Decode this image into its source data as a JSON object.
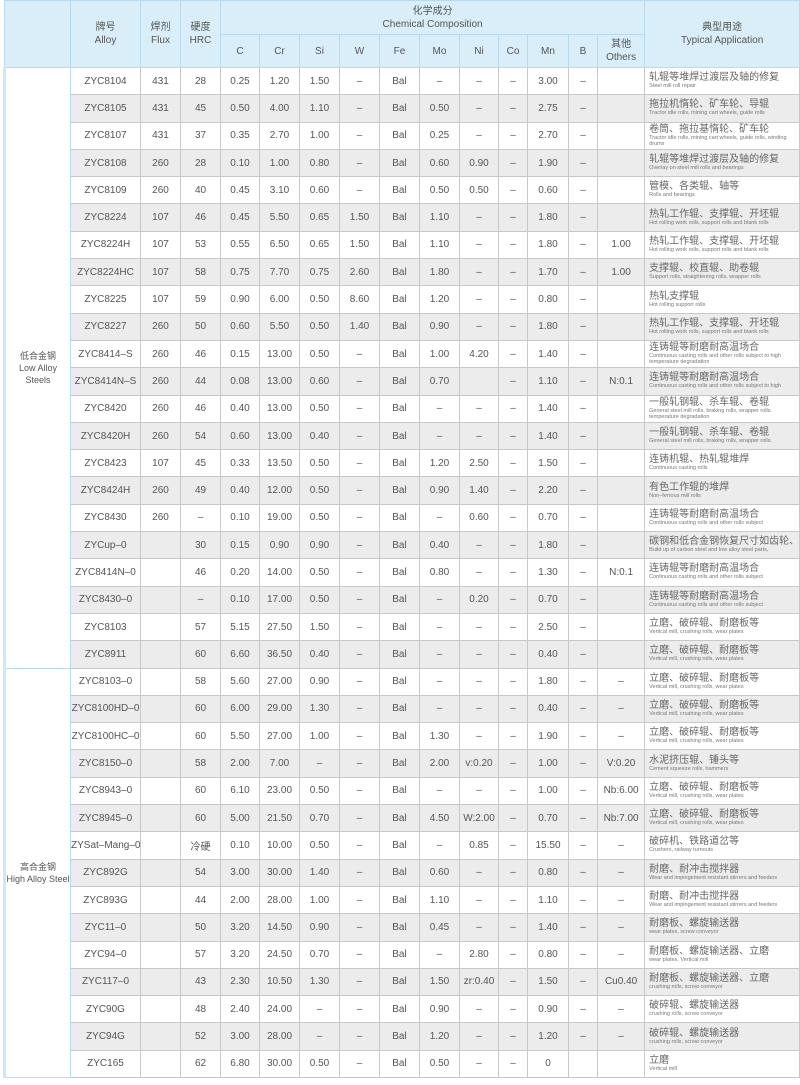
{
  "header": {
    "alloy_cn": "牌号",
    "alloy_en": "Alloy",
    "flux_cn": "焊剂",
    "flux_en": "Flux",
    "hrc_cn": "硬度",
    "hrc_en": "HRC",
    "chem_cn": "化学成分",
    "chem_en": "Chemical Composition",
    "elements": [
      "C",
      "Cr",
      "Si",
      "W",
      "Fe",
      "Mo",
      "Ni",
      "Co",
      "Mn",
      "B"
    ],
    "others_cn": "其他",
    "others_en": "Others",
    "app_cn": "典型用途",
    "app_en": "Typical Application"
  },
  "colors": {
    "header_bg": "#d9eef9",
    "row_alt": "#ececec"
  },
  "groups": [
    {
      "label_cn": "低合金钢",
      "label_en": "Low Alloy Steels",
      "rows": [
        [
          "ZYC8104",
          "431",
          "28",
          "0.25",
          "1.20",
          "1.50",
          "–",
          "Bal",
          "–",
          "–",
          "–",
          "3.00",
          "–",
          "",
          "轧辊等堆焊过渡层及轴的修复",
          "Steel mill roll repair"
        ],
        [
          "ZYC8105",
          "431",
          "45",
          "0.50",
          "4.00",
          "1.10",
          "–",
          "Bal",
          "0.50",
          "–",
          "–",
          "2.75",
          "–",
          "",
          "拖拉机惰轮、矿车轮、导辊",
          "Tractor idle rolls, mining cart wheels, guide rolls"
        ],
        [
          "ZYC8107",
          "431",
          "37",
          "0.35",
          "2.70",
          "1.00",
          "–",
          "Bal",
          "0.25",
          "–",
          "–",
          "2.70",
          "–",
          "",
          "卷筒、拖拉基惰轮、矿车轮",
          "Tractor idle rolls, mining cart wheels, guide rolls, winding drums"
        ],
        [
          "ZYC8108",
          "260",
          "28",
          "0.10",
          "1.00",
          "0.80",
          "–",
          "Bal",
          "0.60",
          "0.90",
          "–",
          "1.90",
          "–",
          "",
          "轧辊等堆焊过渡层及轴的修复",
          "Overlay on steel mill rolls and bearings"
        ],
        [
          "ZYC8109",
          "260",
          "40",
          "0.45",
          "3.10",
          "0.60",
          "–",
          "Bal",
          "0.50",
          "0.50",
          "–",
          "0.60",
          "–",
          "",
          "管模、各类辊、轴等",
          "Rolls and bearings"
        ],
        [
          "ZYC8224",
          "107",
          "46",
          "0.45",
          "5.50",
          "0.65",
          "1.50",
          "Bal",
          "1.10",
          "–",
          "–",
          "1.80",
          "–",
          "",
          "热轧工作辊、支撑辊、开坯辊",
          "Hot rolling work rolls, support rolls and blank rolls"
        ],
        [
          "ZYC8224H",
          "107",
          "53",
          "0.55",
          "6.50",
          "0.65",
          "1.50",
          "Bal",
          "1.10",
          "–",
          "–",
          "1.80",
          "–",
          "1.00",
          "热轧工作辊、支撑辊、开坯辊",
          "Hot rolling work rolls, support rolls and blank rolls"
        ],
        [
          "ZYC8224HC",
          "107",
          "58",
          "0.75",
          "7.70",
          "0.75",
          "2.60",
          "Bal",
          "1.80",
          "–",
          "–",
          "1.70",
          "–",
          "1.00",
          "支撑辊、校直辊、助卷辊",
          "Support rolls, straightening rolls, wrapper rolls"
        ],
        [
          "ZYC8225",
          "107",
          "59",
          "0.90",
          "6.00",
          "0.50",
          "8.60",
          "Bal",
          "1.20",
          "–",
          "–",
          "0.80",
          "–",
          "",
          "热轧支撑辊",
          "Hot rolling support rolls"
        ],
        [
          "ZYC8227",
          "260",
          "50",
          "0.60",
          "5.50",
          "0.50",
          "1.40",
          "Bal",
          "0.90",
          "–",
          "–",
          "1.80",
          "–",
          "",
          "热轧工作辊、支撑辊、开坯辊",
          "Hot rolling work rolls, support rolls and blank rolls"
        ],
        [
          "ZYC8414–S",
          "260",
          "46",
          "0.15",
          "13.00",
          "0.50",
          "–",
          "Bal",
          "1.00",
          "4.20",
          "–",
          "1.40",
          "–",
          "",
          "连铸辊等耐磨耐高温场合",
          "Continuous casting rolls and other rolls subject to high temperature degradation"
        ],
        [
          "ZYC8414N–S",
          "260",
          "44",
          "0.08",
          "13.00",
          "0.60",
          "–",
          "Bal",
          "0.70",
          "",
          "–",
          "1.10",
          "–",
          "N:0.1",
          "连铸辊等耐磨耐高温场合",
          "Continuous casting rolls and other rolls subject to high"
        ],
        [
          "ZYC8420",
          "260",
          "46",
          "0.40",
          "13.00",
          "0.50",
          "–",
          "Bal",
          "–",
          "–",
          "–",
          "1.40",
          "–",
          "",
          "一般轧钢辊、杀车辊、卷辊",
          "General steel mill rolls, braking rolls, wrapper rolls. temperature degradation"
        ],
        [
          "ZYC8420H",
          "260",
          "54",
          "0.60",
          "13.00",
          "0.40",
          "–",
          "Bal",
          "–",
          "–",
          "–",
          "1.40",
          "–",
          "",
          "一般轧钢辊、杀车辊、卷辊",
          "General steel mill rolls, braking rolls, wrapper rolls."
        ],
        [
          "ZYC8423",
          "107",
          "45",
          "0.33",
          "13.50",
          "0.50",
          "–",
          "Bal",
          "1.20",
          "2.50",
          "–",
          "1.50",
          "–",
          "",
          "连铸机辊、热轧辊堆焊",
          "Continuous casting rolls"
        ],
        [
          "ZYC8424H",
          "260",
          "49",
          "0.40",
          "12.00",
          "0.50",
          "–",
          "Bal",
          "0.90",
          "1.40",
          "–",
          "2.20",
          "–",
          "",
          "有色工作辊的堆焊",
          "Non–ferrous mill rolls"
        ],
        [
          "ZYC8430",
          "260",
          "–",
          "0.10",
          "19.00",
          "0.50",
          "–",
          "Bal",
          "–",
          "0.60",
          "–",
          "0.70",
          "–",
          "",
          "连铸辊等耐磨耐高温场合",
          "Continuous casting rolls and other rolls subject"
        ],
        [
          "ZYCup–0",
          "",
          "30",
          "0.15",
          "0.90",
          "0.90",
          "–",
          "Bal",
          "0.40",
          "–",
          "–",
          "1.80",
          "–",
          "",
          "碳钢和低合金钢恢复尺寸如齿轮、",
          "Build up of carbon steel and low alloy steel parts,"
        ],
        [
          "ZYC8414N–0",
          "",
          "46",
          "0.20",
          "14.00",
          "0.50",
          "–",
          "Bal",
          "0.80",
          "–",
          "–",
          "1.30",
          "–",
          "N:0.1",
          "连铸辊等耐磨耐高温场合",
          "Continuous casting rolls and other rolls subject"
        ],
        [
          "ZYC8430–0",
          "",
          "–",
          "0.10",
          "17.00",
          "0.50",
          "–",
          "Bal",
          "–",
          "0.20",
          "–",
          "0.70",
          "–",
          "",
          "连铸辊等耐磨耐高温场合",
          "Continuous casting rolls and other rolls subject"
        ],
        [
          "ZYC8103",
          "",
          "57",
          "5.15",
          "27.50",
          "1.50",
          "–",
          "Bal",
          "–",
          "–",
          "–",
          "2.50",
          "–",
          "",
          "立磨、破碎辊、耐磨板等",
          "Vertical mill, crushing rolls, wear plates"
        ],
        [
          "ZYC8911",
          "",
          "60",
          "6.60",
          "36.50",
          "0.40",
          "–",
          "Bal",
          "–",
          "–",
          "–",
          "0.40",
          "–",
          "",
          "立磨、破碎辊、耐磨板等",
          "Vertical mill, crushing rolls, wear plates"
        ]
      ]
    },
    {
      "label_cn": "高合金钢",
      "label_en": "High Alloy Steel",
      "rows": [
        [
          "ZYC8103–0",
          "",
          "58",
          "5.60",
          "27.00",
          "0.90",
          "–",
          "Bal",
          "–",
          "–",
          "–",
          "1.80",
          "–",
          "–",
          "立磨、破碎辊、耐磨板等",
          "Vertical mill, crushing rolls, wear plates"
        ],
        [
          "ZYC8100HD–0",
          "",
          "60",
          "6.00",
          "29.00",
          "1.30",
          "–",
          "Bal",
          "–",
          "–",
          "–",
          "0.40",
          "–",
          "–",
          "立磨、破碎辊、耐磨板等",
          "Vertical mill, crushing rolls, wear plates"
        ],
        [
          "ZYC8100HC–0",
          "",
          "60",
          "5.50",
          "27.00",
          "1.00",
          "–",
          "Bal",
          "1.30",
          "–",
          "–",
          "1.90",
          "–",
          "–",
          "立磨、破碎辊、耐磨板等",
          "Vertical mill, crushing rolls, wear plates"
        ],
        [
          "ZYC8150–0",
          "",
          "58",
          "2.00",
          "7.00",
          "–",
          "–",
          "Bal",
          "2.00",
          "v:0.20",
          "–",
          "1.00",
          "–",
          "V:0.20",
          "水泥挤压辊、锤头等",
          "Cement squeeze rolls, hammers"
        ],
        [
          "ZYC8943–0",
          "",
          "60",
          "6.10",
          "23.00",
          "0.50",
          "–",
          "Bal",
          "–",
          "–",
          "–",
          "1.00",
          "–",
          "Nb:6.00",
          "立磨、破碎辊、耐磨板等",
          "Vertical mill, crushing rolls, wear plates"
        ],
        [
          "ZYC8945–0",
          "",
          "60",
          "5.00",
          "21.50",
          "0.70",
          "–",
          "Bal",
          "4.50",
          "W:2.00",
          "–",
          "0.70",
          "–",
          "Nb:7.00",
          "立磨、破碎辊、耐磨板等",
          "Vertical mill, crushing rolls, wear plates"
        ],
        [
          "ZYSat–Mang–0",
          "",
          "冷硬",
          "0.10",
          "10.00",
          "0.50",
          "–",
          "Bal",
          "–",
          "0.85",
          "–",
          "15.50",
          "–",
          "–",
          "破碎机、铁路道岔等",
          "Crushers, railway turnouts"
        ],
        [
          "ZYC892G",
          "",
          "54",
          "3.00",
          "30.00",
          "1.40",
          "–",
          "Bal",
          "0.60",
          "–",
          "–",
          "0.80",
          "–",
          "–",
          "耐磨、耐冲击搅拌器",
          "Wear and impingement resistant stirrers and feeders"
        ],
        [
          "ZYC893G",
          "",
          "44",
          "2.00",
          "28.00",
          "1.00",
          "–",
          "Bal",
          "1.10",
          "–",
          "–",
          "1.10",
          "–",
          "–",
          "耐磨、耐冲击搅拌器",
          "Wear and impingement resistant stirrers and feeders"
        ],
        [
          "ZYC11–0",
          "",
          "50",
          "3.20",
          "14.50",
          "0.90",
          "–",
          "Bal",
          "0.45",
          "–",
          "–",
          "1.40",
          "–",
          "–",
          "耐磨板、螺旋输送器",
          "wear plates, screw conveyor"
        ],
        [
          "ZYC94–0",
          "",
          "57",
          "3.20",
          "24.50",
          "0.70",
          "–",
          "Bal",
          "–",
          "2.80",
          "–",
          "0.80",
          "–",
          "–",
          "耐磨板、螺旋输送器、立磨",
          "wear plates, Vertical mill"
        ],
        [
          "ZYC117–0",
          "",
          "43",
          "2.30",
          "10.50",
          "1.30",
          "–",
          "Bal",
          "1.50",
          "zr:0.40",
          "–",
          "1.50",
          "–",
          "Cu0.40",
          "耐磨板、螺旋输送器、立磨",
          "crushing rolls, screw conveyor"
        ],
        [
          "ZYC90G",
          "",
          "48",
          "2.40",
          "24.00",
          "–",
          "–",
          "Bal",
          "0.90",
          "–",
          "–",
          "0.90",
          "–",
          "–",
          "破碎辊、螺旋输送器",
          "crushing rolls, screw conveyor"
        ],
        [
          "ZYC94G",
          "",
          "52",
          "3.00",
          "28.00",
          "–",
          "–",
          "Bal",
          "1.20",
          "–",
          "–",
          "1.20",
          "–",
          "–",
          "破碎辊、螺旋输送器",
          "crushing rolls, screw conveyor"
        ],
        [
          "ZYC165",
          "",
          "62",
          "6.80",
          "30.00",
          "0.50",
          "–",
          "Bal",
          "0.50",
          "–",
          "–",
          "0",
          "",
          "",
          "立磨",
          "Vertical mill"
        ]
      ]
    }
  ]
}
